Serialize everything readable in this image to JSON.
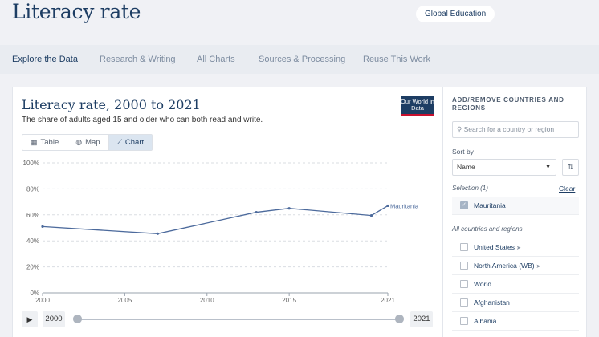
{
  "header": {
    "title": "Literacy rate",
    "topic_label": "Global Education"
  },
  "nav": {
    "tabs": [
      "Explore the Data",
      "Research & Writing",
      "All Charts",
      "Sources & Processing",
      "Reuse This Work"
    ]
  },
  "chart": {
    "title": "Literacy rate, 2000 to 2021",
    "subtitle": "The share of adults aged 15 and older who can both read and write.",
    "logo_text": "Our World in Data",
    "view_tabs": [
      "Table",
      "Map",
      "Chart"
    ],
    "active_view": "Chart"
  },
  "chart_data": {
    "type": "line",
    "x": [
      2000,
      2007,
      2013,
      2015,
      2020,
      2021
    ],
    "series": [
      {
        "name": "Mauritania",
        "values": [
          51.0,
          45.5,
          62.0,
          65.0,
          59.5,
          67.0
        ],
        "color": "#4c6a9c"
      }
    ],
    "xticks": [
      "2000",
      "2005",
      "2010",
      "2015",
      "2021"
    ],
    "xtick_values": [
      2000,
      2005,
      2010,
      2015,
      2021
    ],
    "yticks": [
      "0%",
      "20%",
      "40%",
      "60%",
      "80%",
      "100%"
    ],
    "ytick_values": [
      0,
      20,
      40,
      60,
      80,
      100
    ],
    "xlim": [
      2000,
      2021
    ],
    "ylim": [
      0,
      100
    ],
    "grid": true
  },
  "timeline": {
    "start_year": "2000",
    "end_year": "2021",
    "start_fraction": 0,
    "end_fraction": 1
  },
  "sidebar": {
    "heading": "ADD/REMOVE COUNTRIES AND REGIONS",
    "search_placeholder": "Search for a country or region",
    "sort_label": "Sort by",
    "sort_value": "Name",
    "selection_label": "Selection (1)",
    "clear_label": "Clear",
    "selected": [
      "Mauritania"
    ],
    "all_label": "All countries and regions",
    "all_items": [
      "United States",
      "North America (WB)",
      "World",
      "Afghanistan",
      "Albania"
    ]
  }
}
